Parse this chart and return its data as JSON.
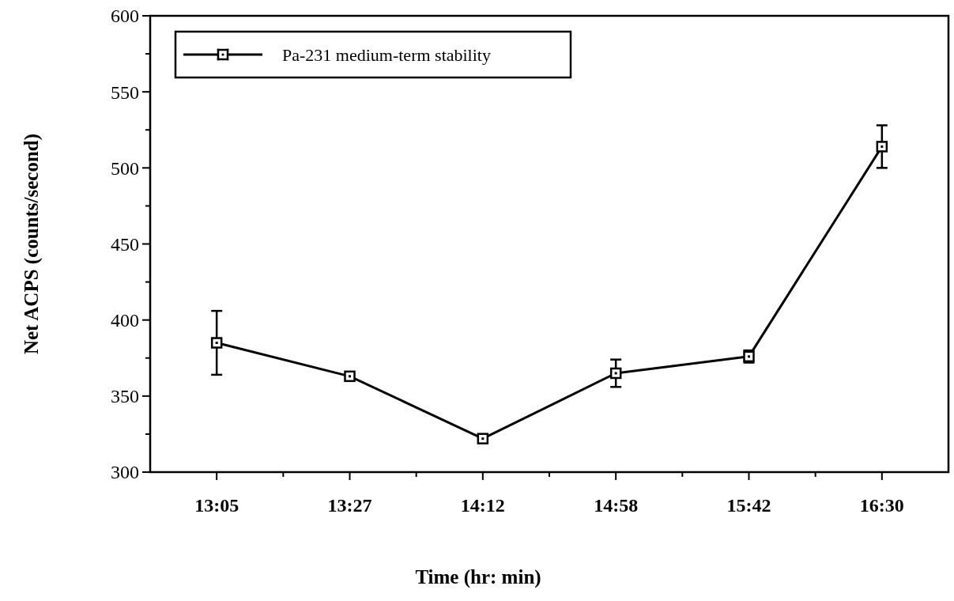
{
  "chart_data": {
    "type": "line",
    "xlabel": "Time (hr: min)",
    "ylabel": "Net ACPS (counts/second)",
    "categories": [
      "13:05",
      "13:27",
      "14:12",
      "14:58",
      "15:42",
      "16:30"
    ],
    "series": [
      {
        "name": "Pa-231 medium-term stability",
        "color": "#000000",
        "values": [
          385,
          363,
          322,
          365,
          376,
          514
        ],
        "errors": [
          21,
          null,
          null,
          9,
          4,
          14
        ]
      }
    ],
    "ylim": [
      300,
      600
    ],
    "yticks": [
      300,
      {
        "value": 325,
        "label": null
      },
      350,
      {
        "value": 375,
        "label": null
      },
      400,
      {
        "value": 425,
        "label": null
      },
      450,
      {
        "value": 475,
        "label": null
      },
      500,
      {
        "value": 525,
        "label": null
      },
      550,
      {
        "value": 575,
        "label": null
      },
      600
    ],
    "legend": "top left",
    "marker": "square",
    "line_style": "solid",
    "grid": false
  }
}
